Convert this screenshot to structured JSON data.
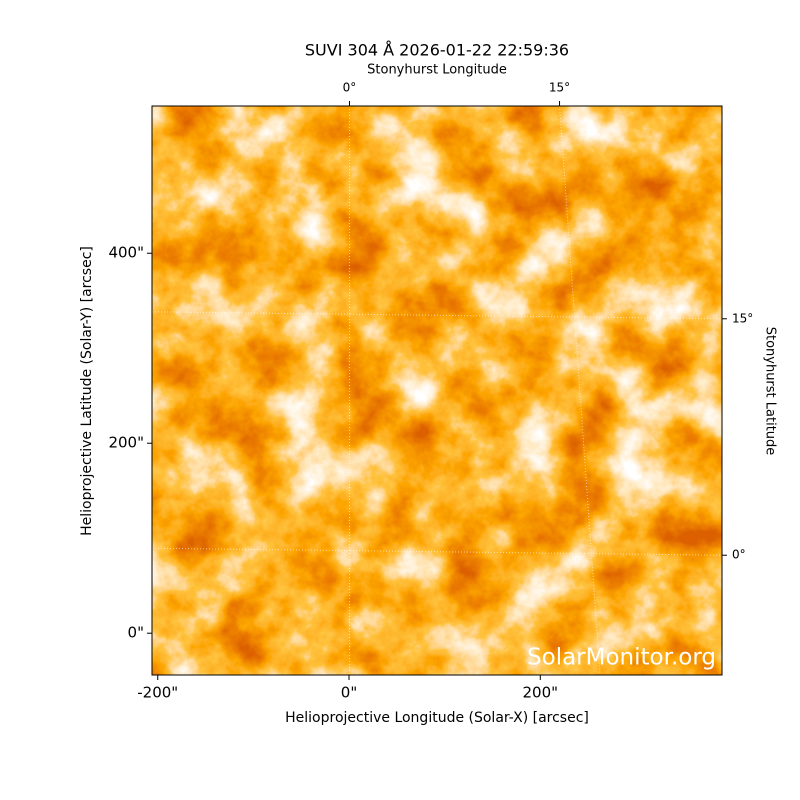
{
  "chart_data": {
    "type": "image",
    "title": "SUVI 304 Å 2026-01-22 22:59:36",
    "xlabel": "Helioprojective Longitude (Solar-X) [arcsec]",
    "ylabel": "Helioprojective Latitude (Solar-Y) [arcsec]",
    "x2label": "Stonyhurst Longitude",
    "y2label": "Stonyhurst Latitude",
    "xlim": [
      -206,
      390
    ],
    "ylim": [
      -44,
      555
    ],
    "xticks": [
      {
        "value": -200,
        "label": "-200\""
      },
      {
        "value": 0,
        "label": "0\""
      },
      {
        "value": 200,
        "label": "200\""
      }
    ],
    "yticks": [
      {
        "value": 0,
        "label": "0\""
      },
      {
        "value": 200,
        "label": "200\""
      },
      {
        "value": 400,
        "label": "400\""
      }
    ],
    "x2lim": [
      -14.1,
      26.6
    ],
    "x2ticks": [
      {
        "value": 0,
        "label": "0°"
      },
      {
        "value": 15,
        "label": "15°"
      }
    ],
    "y2lim": [
      -7.6,
      28.5
    ],
    "y2ticks": [
      {
        "value": 0,
        "label": "0°"
      },
      {
        "value": 15,
        "label": "15°"
      }
    ],
    "grid": true,
    "watermark": "SolarMonitor.org"
  }
}
